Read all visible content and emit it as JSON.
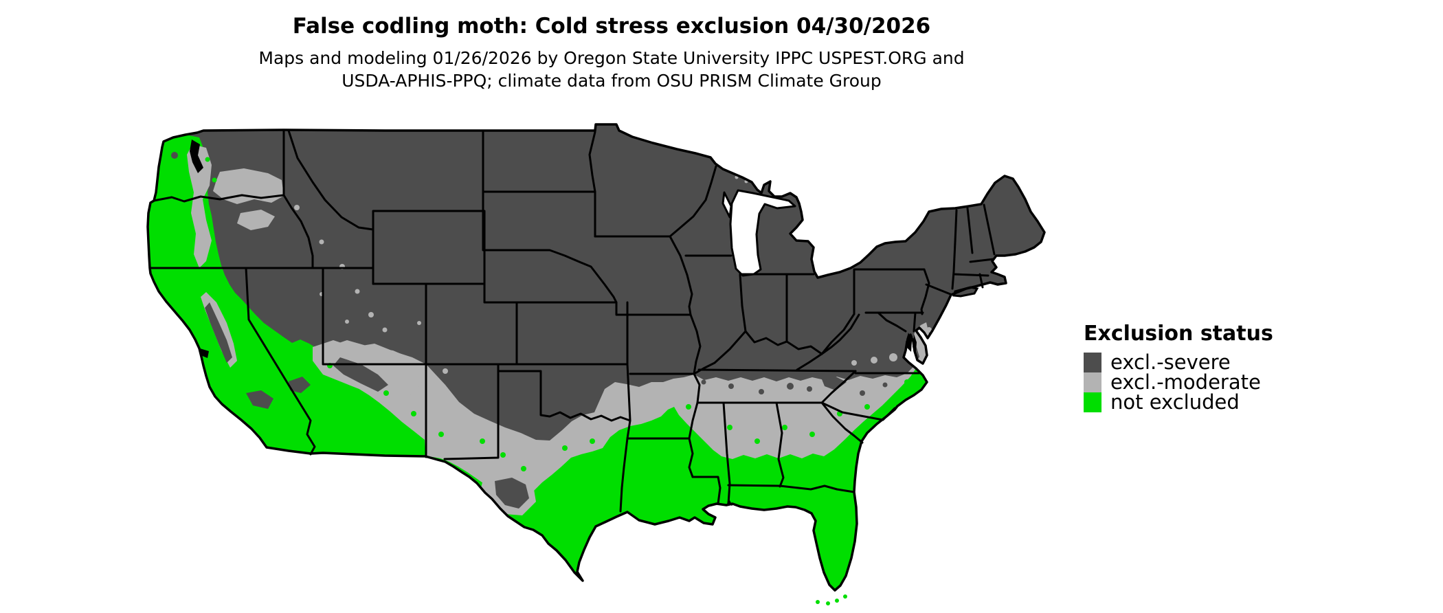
{
  "title": "False codling moth: Cold stress exclusion 04/30/2026",
  "subtitle_line1": "Maps and modeling 01/26/2026 by Oregon State University IPPC USPEST.ORG and",
  "subtitle_line2": "USDA-APHIS-PPQ; climate data from OSU PRISM Climate Group",
  "legend": {
    "title": "Exclusion status",
    "items": [
      {
        "label": "excl.-severe",
        "color": "#4d4d4d"
      },
      {
        "label": "excl.-moderate",
        "color": "#b3b3b3"
      },
      {
        "label": "not excluded",
        "color": "#00de00"
      }
    ]
  },
  "map": {
    "region": "Contiguous United States",
    "border_color": "#000000",
    "water_color": "#ffffff",
    "categories": [
      "excl.-severe",
      "excl.-moderate",
      "not excluded"
    ]
  }
}
